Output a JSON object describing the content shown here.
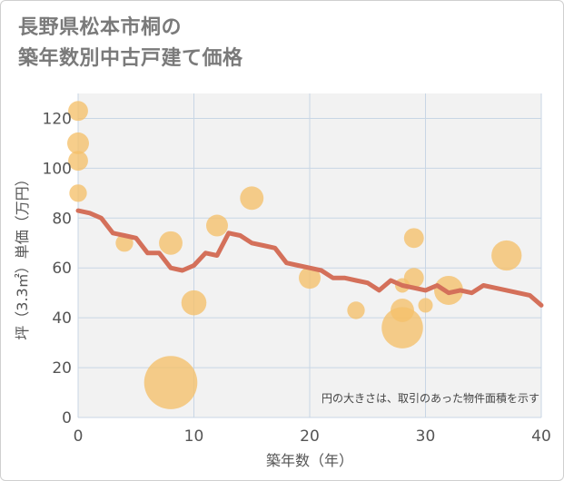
{
  "chart_data": {
    "type": "scatter",
    "title_lines": [
      "長野県松本市桐の",
      "築年数別中古戸建て価格"
    ],
    "xlabel": "築年数（年）",
    "ylabel": "坪（3.3㎡）単価（万円）",
    "xlim": [
      0,
      40
    ],
    "ylim": [
      0,
      130
    ],
    "x_ticks": [
      0,
      10,
      20,
      30,
      40
    ],
    "y_ticks": [
      0,
      20,
      40,
      60,
      80,
      100,
      120
    ],
    "grid": true,
    "note": "円の大きさは、取引のあった物件面積を示す",
    "colors": {
      "bubble": "#f5c06a",
      "line": "#d4705a",
      "grid": "#c8d6e5",
      "plot_bg": "#f2f2f2"
    },
    "scatter_points": [
      {
        "x": 0,
        "y": 123,
        "size": 3
      },
      {
        "x": 0,
        "y": 110,
        "size": 4
      },
      {
        "x": 0,
        "y": 103,
        "size": 3
      },
      {
        "x": 0,
        "y": 90,
        "size": 2
      },
      {
        "x": 4,
        "y": 70,
        "size": 2
      },
      {
        "x": 8,
        "y": 70,
        "size": 5
      },
      {
        "x": 8,
        "y": 14,
        "size": 40
      },
      {
        "x": 10,
        "y": 46,
        "size": 6
      },
      {
        "x": 12,
        "y": 77,
        "size": 4
      },
      {
        "x": 15,
        "y": 88,
        "size": 5
      },
      {
        "x": 20,
        "y": 56,
        "size": 4
      },
      {
        "x": 24,
        "y": 43,
        "size": 2
      },
      {
        "x": 28,
        "y": 36,
        "size": 22
      },
      {
        "x": 28,
        "y": 43,
        "size": 5
      },
      {
        "x": 28,
        "y": 53,
        "size": 1
      },
      {
        "x": 29,
        "y": 72,
        "size": 3
      },
      {
        "x": 29,
        "y": 56,
        "size": 3
      },
      {
        "x": 30,
        "y": 45,
        "size": 1
      },
      {
        "x": 32,
        "y": 51,
        "size": 9
      },
      {
        "x": 37,
        "y": 65,
        "size": 10
      }
    ],
    "line_series": {
      "x": [
        0,
        1,
        2,
        3,
        4,
        5,
        6,
        7,
        8,
        9,
        10,
        11,
        12,
        13,
        14,
        15,
        16,
        17,
        18,
        19,
        20,
        21,
        22,
        23,
        24,
        25,
        26,
        27,
        28,
        29,
        30,
        31,
        32,
        33,
        34,
        35,
        36,
        37,
        38,
        39,
        40
      ],
      "y": [
        83,
        82,
        80,
        74,
        73,
        72,
        66,
        66,
        60,
        59,
        61,
        66,
        65,
        74,
        73,
        70,
        69,
        68,
        62,
        61,
        60,
        59,
        56,
        56,
        55,
        54,
        51,
        55,
        53,
        52,
        51,
        53,
        50,
        51,
        50,
        53,
        52,
        51,
        50,
        49,
        45
      ]
    }
  }
}
